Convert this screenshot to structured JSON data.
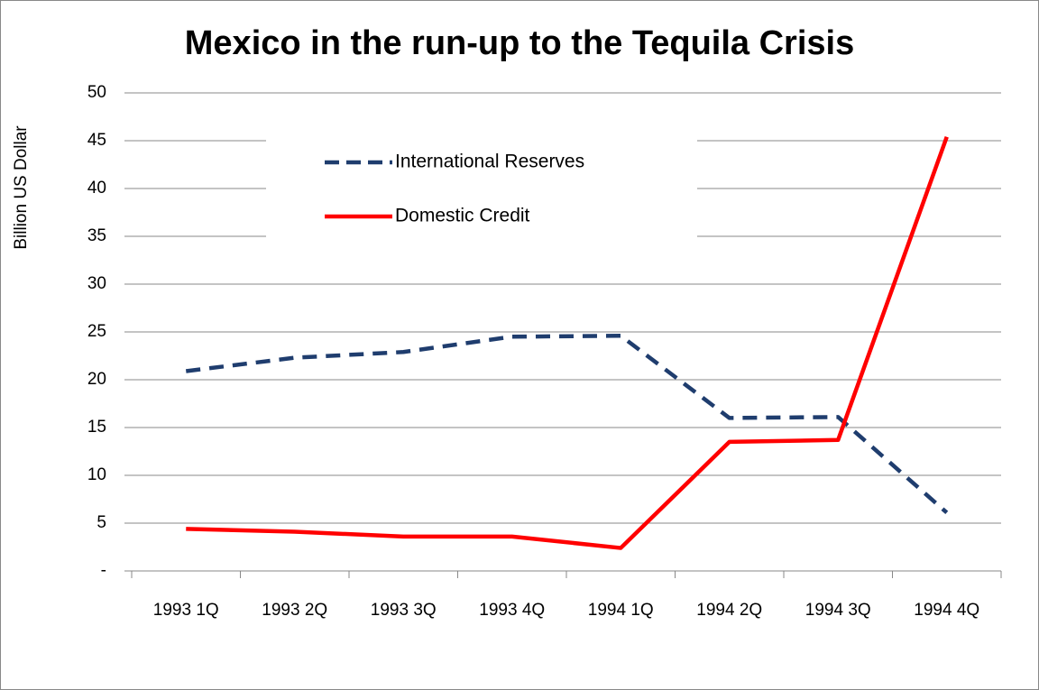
{
  "chart_data": {
    "type": "line",
    "title": "Mexico in the run-up to the Tequila Crisis",
    "y_label": "Billion US Dollar",
    "categories": [
      "1993 1Q",
      "1993 2Q",
      "1993 3Q",
      "1993 4Q",
      "1994 1Q",
      "1994 2Q",
      "1994 3Q",
      "1994 4Q"
    ],
    "series": [
      {
        "name": "International Reserves",
        "color": "#1f3d6e",
        "dashed": true,
        "values": [
          20.9,
          22.3,
          22.9,
          24.5,
          24.6,
          16.0,
          16.1,
          6.1
        ]
      },
      {
        "name": "Domestic Credit",
        "color": "#ff0000",
        "dashed": false,
        "values": [
          4.4,
          4.1,
          3.6,
          3.6,
          2.4,
          13.5,
          13.7,
          45.4
        ]
      }
    ],
    "ylim": [
      0,
      50
    ],
    "yticks": [
      {
        "value": 0,
        "label": "-"
      },
      5,
      10,
      15,
      20,
      25,
      30,
      35,
      40,
      45,
      50
    ],
    "grid": true
  }
}
